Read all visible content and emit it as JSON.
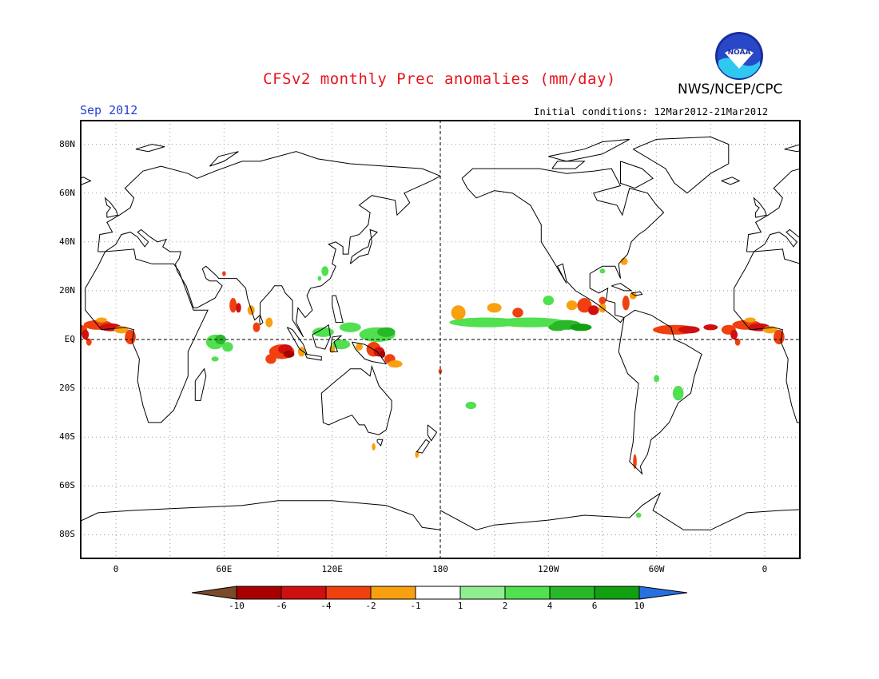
{
  "header": {
    "title": "CFSv2 monthly Prec anomalies (mm/day)",
    "agency": "NWS/NCEP/CPC",
    "month": "Sep 2012",
    "initial_conditions": "Initial conditions: 12Mar2012-21Mar2012",
    "logo_text": "NOAA"
  },
  "map": {
    "projection": "equirectangular",
    "lon_range": [
      -20,
      380
    ],
    "lat_range": [
      -90,
      90
    ],
    "lat_labels": [
      "80N",
      "60N",
      "40N",
      "20N",
      "EQ",
      "20S",
      "40S",
      "60S",
      "80S"
    ],
    "lon_labels": [
      "0",
      "60E",
      "120E",
      "180",
      "120W",
      "60W",
      "0"
    ],
    "reference_lines": [
      "Equator",
      "180"
    ]
  },
  "colorbar": {
    "ticks": [
      "-10",
      "-6",
      "-4",
      "-2",
      "-1",
      "1",
      "2",
      "4",
      "6",
      "10"
    ],
    "colors": [
      "#7a4a2a",
      "#a80000",
      "#d01010",
      "#f04010",
      "#f8a010",
      "#ffffff",
      "#90ee90",
      "#50e050",
      "#28b828",
      "#10a010",
      "#2870e0"
    ]
  }
}
